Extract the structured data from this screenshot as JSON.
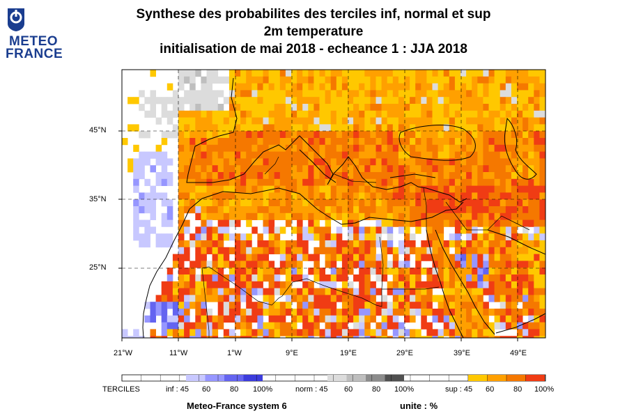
{
  "logo": {
    "line1": "METEO",
    "line2": "FRANCE"
  },
  "title": {
    "line1": "Synthese des probabilites des terciles inf, normal et sup",
    "line2": "2m temperature",
    "line3": "initialisation de mai 2018  -  echeance 1 : JJA 2018"
  },
  "axes": {
    "lon_labels": [
      "21°W",
      "11°W",
      "1°W",
      "9°E",
      "19°E",
      "29°E",
      "39°E",
      "49°E"
    ],
    "lat_labels": [
      "45°N",
      "35°N",
      "25°N"
    ]
  },
  "legend": {
    "label": "TERCILES",
    "inf_label": "inf : 45",
    "norm_label": "norm : 45",
    "sup_label": "sup : 45",
    "ticks": [
      "60",
      "80",
      "100%"
    ],
    "colors": {
      "inf": [
        "#c8c8ff",
        "#9696ff",
        "#6464f0",
        "#3c3cdc"
      ],
      "norm": [
        "#dcdcdc",
        "#bebebe",
        "#8c8c8c",
        "#505050"
      ],
      "sup": [
        "#ffc800",
        "#ffa000",
        "#f57800",
        "#f03c14"
      ]
    }
  },
  "footer": {
    "model": "Meteo-France system 6",
    "unit": "unite : %"
  }
}
